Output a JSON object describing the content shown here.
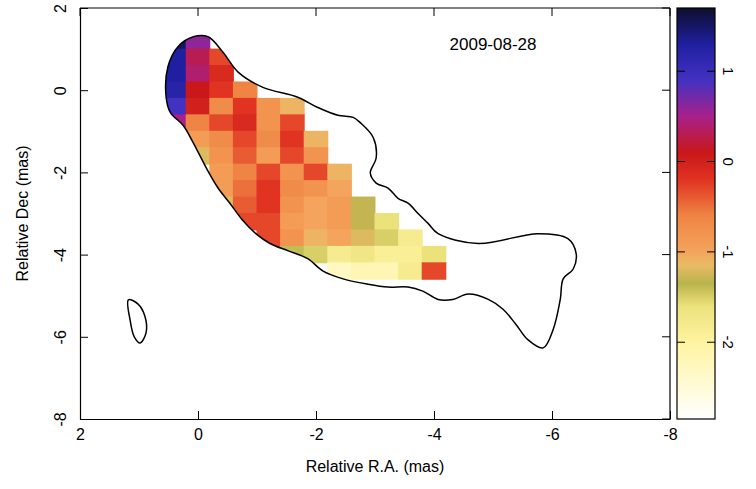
{
  "chart_data": {
    "type": "heatmap",
    "title": "2009-08-28",
    "x_label": "Relative R.A. (mas)",
    "y_label": "Relative Dec (mas)",
    "xlim": [
      2,
      -8
    ],
    "xticks": [
      2,
      0,
      -2,
      -4,
      -6,
      -8
    ],
    "ylim": [
      -8,
      2
    ],
    "yticks": [
      -8,
      -6,
      -4,
      -2,
      0,
      2
    ],
    "x": [
      0.4,
      0.0,
      -0.4,
      -0.8,
      -1.2,
      -1.6,
      -2.0,
      -2.4,
      -2.8,
      -3.2,
      -3.6,
      -4.0
    ],
    "y": [
      1.2,
      0.8,
      0.4,
      0.0,
      -0.4,
      -0.8,
      -1.2,
      -1.6,
      -2.0,
      -2.4,
      -2.8,
      -3.2,
      -3.6,
      -4.0,
      -4.4
    ],
    "cells": [
      [
        1.5,
        0.6,
        null,
        null,
        null,
        null,
        null,
        null,
        null,
        null,
        null,
        null
      ],
      [
        1.3,
        0.3,
        -0.3,
        null,
        null,
        null,
        null,
        null,
        null,
        null,
        null,
        null
      ],
      [
        1.3,
        0.4,
        -0.1,
        null,
        null,
        null,
        null,
        null,
        null,
        null,
        null,
        null
      ],
      [
        1.2,
        0.1,
        -0.2,
        -0.6,
        null,
        null,
        null,
        null,
        null,
        null,
        null,
        null
      ],
      [
        0.9,
        0.0,
        -0.7,
        -0.2,
        -0.8,
        -1.1,
        null,
        null,
        null,
        null,
        null,
        null
      ],
      [
        0.5,
        -0.6,
        -0.3,
        -0.1,
        -0.8,
        -0.3,
        null,
        null,
        null,
        null,
        null,
        null
      ],
      [
        null,
        -0.9,
        -0.7,
        -0.3,
        -0.7,
        -0.2,
        -1.1,
        null,
        null,
        null,
        null,
        null
      ],
      [
        null,
        -1.2,
        -0.8,
        -0.4,
        -0.9,
        -0.3,
        -0.8,
        null,
        null,
        null,
        null,
        null
      ],
      [
        null,
        null,
        -0.9,
        -0.6,
        -0.3,
        -0.8,
        -0.3,
        -1.1,
        null,
        null,
        null,
        null
      ],
      [
        null,
        null,
        -0.9,
        -0.5,
        -0.2,
        -0.7,
        -0.8,
        -1.0,
        null,
        null,
        null,
        null
      ],
      [
        null,
        null,
        -1.2,
        -0.4,
        -0.2,
        -0.8,
        -1.0,
        -0.9,
        -1.3,
        null,
        null,
        null
      ],
      [
        null,
        null,
        null,
        -0.3,
        -0.3,
        -0.9,
        -1.0,
        -0.9,
        -1.3,
        -1.6,
        null,
        null
      ],
      [
        null,
        null,
        null,
        null,
        -0.3,
        -0.8,
        -1.1,
        -1.0,
        -1.2,
        -1.5,
        -1.8,
        null
      ],
      [
        null,
        null,
        null,
        null,
        null,
        -1.4,
        -1.5,
        -1.8,
        -1.7,
        -1.9,
        -1.9,
        -1.6
      ],
      [
        null,
        null,
        null,
        null,
        null,
        null,
        null,
        -2.3,
        -2.2,
        -2.2,
        -1.8,
        -0.3
      ]
    ],
    "colorbar": {
      "range": [
        -2.85,
        1.7
      ],
      "ticks": [
        -2,
        -1,
        0,
        1
      ]
    },
    "contours": [
      {
        "x": [
          0.54,
          0.51,
          0.34,
          0.08,
          -0.17,
          -0.42,
          -0.68,
          -1.1,
          -1.69,
          -2.03,
          -2.37,
          -2.63,
          -2.75,
          -2.97,
          -3.02,
          -2.92,
          -3.02,
          -3.22,
          -3.39,
          -3.56,
          -3.73,
          -3.9,
          -4.07,
          -4.75,
          -5.76,
          -6.27,
          -6.41,
          -6.36,
          -6.19,
          -6.14,
          -6.02,
          -5.85,
          -5.59,
          -5.39,
          -5.17,
          -4.92,
          -4.58,
          -4.32,
          -4.07,
          -3.81,
          -3.56,
          -3.22,
          -2.88,
          -2.46,
          -2.12,
          -1.86,
          -1.53,
          -1.22,
          -0.98,
          -0.76,
          -0.54,
          -0.34,
          -0.14,
          0.08,
          0.25,
          0.47
        ],
        "y": [
          -0.17,
          0.57,
          1.06,
          1.3,
          1.3,
          0.93,
          0.44,
          0.07,
          -0.17,
          -0.42,
          -0.61,
          -0.66,
          -0.79,
          -1.15,
          -1.65,
          -2.01,
          -2.26,
          -2.38,
          -2.63,
          -2.75,
          -3.0,
          -3.24,
          -3.49,
          -3.73,
          -3.49,
          -3.61,
          -3.98,
          -4.35,
          -4.59,
          -5.09,
          -5.82,
          -6.27,
          -6.07,
          -5.7,
          -5.33,
          -5.09,
          -4.96,
          -5.09,
          -5.09,
          -4.89,
          -4.79,
          -4.79,
          -4.72,
          -4.59,
          -4.4,
          -4.1,
          -3.91,
          -3.73,
          -3.49,
          -3.17,
          -2.75,
          -2.38,
          -1.89,
          -1.28,
          -0.86,
          -0.54
        ]
      },
      {
        "x": [
          1.18,
          1.02,
          0.9,
          0.88,
          0.98,
          1.08,
          1.15
        ],
        "y": [
          -5.1,
          -5.2,
          -5.5,
          -5.9,
          -6.15,
          -6.0,
          -5.6
        ]
      }
    ]
  }
}
